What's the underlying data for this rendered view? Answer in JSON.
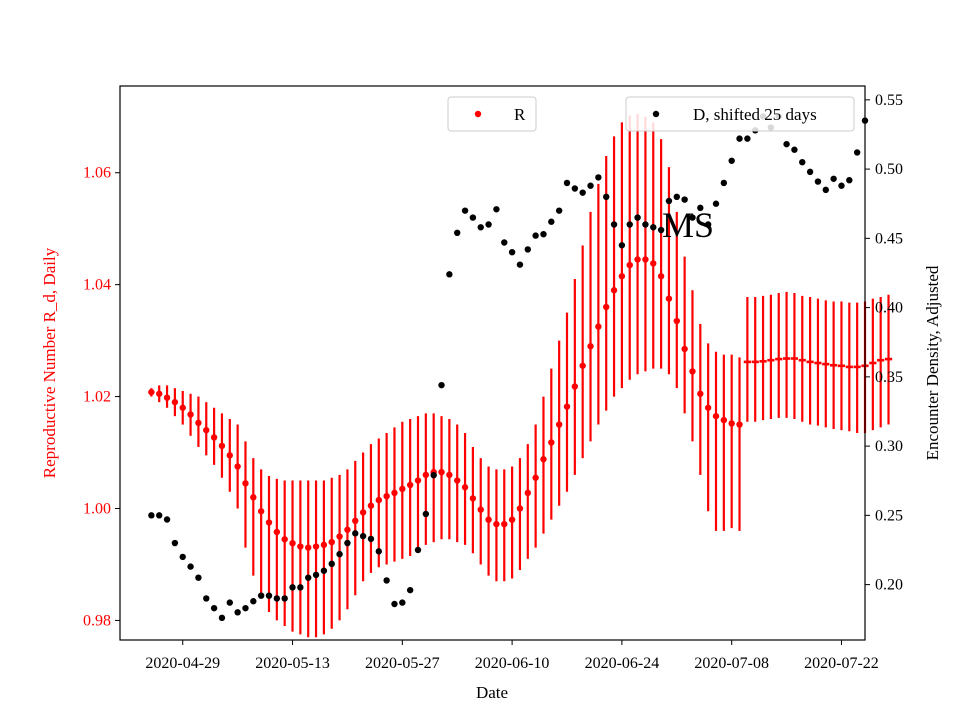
{
  "chart_data": {
    "type": "scatter",
    "xlabel": "Date",
    "ylabel_left": "Reproductive Number R_d, Daily",
    "ylabel_right": "Encounter Density, Adjusted",
    "annotation": "MS",
    "x_ticks": [
      "2020-04-29",
      "2020-05-13",
      "2020-05-27",
      "2020-06-10",
      "2020-06-24",
      "2020-07-08",
      "2020-07-22"
    ],
    "x_start": "2020-04-25",
    "x_range": [
      "2020-04-21",
      "2020-07-25"
    ],
    "ylim_left": [
      0.9765,
      1.0755
    ],
    "yticks_left": [
      0.98,
      1.0,
      1.02,
      1.04,
      1.06
    ],
    "ylim_right": [
      0.16,
      0.56
    ],
    "yticks_right": [
      0.2,
      0.25,
      0.3,
      0.35,
      0.4,
      0.45,
      0.5,
      0.55
    ],
    "left_color": "#ff0000",
    "right_color": "#000000",
    "series": [
      {
        "name": "R",
        "axis": "left",
        "color": "#ff0000",
        "marker": "point",
        "y": [
          1.0208,
          1.0205,
          1.0198,
          1.019,
          1.018,
          1.0168,
          1.0153,
          1.014,
          1.0127,
          1.0112,
          1.0095,
          1.0075,
          1.0045,
          1.002,
          0.9995,
          0.9975,
          0.9958,
          0.9945,
          0.9938,
          0.9932,
          0.993,
          0.9932,
          0.9935,
          0.994,
          0.995,
          0.9962,
          0.9978,
          0.9993,
          1.0005,
          1.0015,
          1.0022,
          1.0028,
          1.0035,
          1.0042,
          1.005,
          1.006,
          1.0065,
          1.0065,
          1.006,
          1.005,
          1.0038,
          1.0018,
          0.9998,
          0.998,
          0.9972,
          0.9972,
          0.998,
          1.0,
          1.0028,
          1.0055,
          1.0088,
          1.0118,
          1.015,
          1.0182,
          1.0218,
          1.0255,
          1.029,
          1.0325,
          1.036,
          1.039,
          1.0415,
          1.0435,
          1.0445,
          1.0445,
          1.0438,
          1.0415,
          1.0375,
          1.0335,
          1.0285,
          1.0245,
          1.0205,
          1.018,
          1.0165,
          1.0158,
          1.0152,
          1.015
        ],
        "yerr_low": [
          1.02,
          1.019,
          1.018,
          1.0165,
          1.015,
          1.013,
          1.011,
          1.0095,
          1.0078,
          1.0055,
          1.003,
          1.0,
          0.993,
          0.988,
          0.984,
          0.9815,
          0.98,
          0.979,
          0.978,
          0.9775,
          0.977,
          0.977,
          0.9775,
          0.9785,
          0.98,
          0.982,
          0.9845,
          0.987,
          0.9885,
          0.9895,
          0.99,
          0.9905,
          0.991,
          0.9915,
          0.9925,
          0.9935,
          0.994,
          0.9945,
          0.9945,
          0.994,
          0.9935,
          0.992,
          0.99,
          0.988,
          0.987,
          0.987,
          0.9875,
          0.989,
          0.991,
          0.993,
          0.9955,
          0.998,
          1.0005,
          1.003,
          1.006,
          1.009,
          1.012,
          1.015,
          1.0175,
          1.02,
          1.0215,
          1.023,
          1.024,
          1.0245,
          1.025,
          1.025,
          1.024,
          1.0215,
          1.017,
          1.012,
          1.006,
          0.9995,
          0.996,
          0.996,
          0.9965,
          0.996
        ],
        "yerr_high": [
          1.0215,
          1.022,
          1.022,
          1.0215,
          1.021,
          1.0205,
          1.02,
          1.019,
          1.018,
          1.017,
          1.016,
          1.015,
          1.012,
          1.009,
          1.007,
          1.0058,
          1.0053,
          1.005,
          1.005,
          1.005,
          1.005,
          1.005,
          1.005,
          1.0055,
          1.006,
          1.007,
          1.0085,
          1.01,
          1.0115,
          1.0125,
          1.0135,
          1.0145,
          1.0155,
          1.016,
          1.0165,
          1.017,
          1.017,
          1.0165,
          1.016,
          1.015,
          1.0135,
          1.011,
          1.009,
          1.0075,
          1.007,
          1.007,
          1.0075,
          1.009,
          1.0115,
          1.015,
          1.02,
          1.025,
          1.03,
          1.035,
          1.041,
          1.047,
          1.053,
          1.058,
          1.063,
          1.0665,
          1.069,
          1.0702,
          1.0705,
          1.07,
          1.069,
          1.066,
          1.061,
          1.053,
          1.045,
          1.039,
          1.033,
          1.0295,
          1.028,
          1.0275,
          1.0275,
          1.027
        ]
      },
      {
        "name": "R",
        "axis": "left",
        "color": "#ff0000",
        "marker": "hline",
        "x_offset": 76,
        "y": [
          1.0262,
          1.0262,
          1.0263,
          1.0265,
          1.0267,
          1.0268,
          1.0268,
          1.0265,
          1.0262,
          1.026,
          1.0258,
          1.0256,
          1.0255,
          1.0253,
          1.0253,
          1.0255,
          1.026,
          1.0265,
          1.0267
        ],
        "yerr_low": [
          1.0155,
          1.0155,
          1.0158,
          1.016,
          1.0162,
          1.0162,
          1.016,
          1.0155,
          1.015,
          1.0148,
          1.0145,
          1.0142,
          1.014,
          1.0138,
          1.0135,
          1.0135,
          1.014,
          1.0145,
          1.015
        ],
        "yerr_high": [
          1.0378,
          1.0378,
          1.038,
          1.0382,
          1.0385,
          1.0387,
          1.0385,
          1.038,
          1.0378,
          1.0375,
          1.0372,
          1.037,
          1.037,
          1.0368,
          1.0368,
          1.037,
          1.0375,
          1.0378,
          1.0382
        ]
      },
      {
        "name": "D, shifted 25 days",
        "axis": "right",
        "color": "#000000",
        "marker": "point",
        "y": [
          0.25,
          0.25,
          0.247,
          0.23,
          0.22,
          0.213,
          0.205,
          0.19,
          0.183,
          0.176,
          0.187,
          0.18,
          0.183,
          0.188,
          0.192,
          0.192,
          0.19,
          0.19,
          0.198,
          0.198,
          0.205,
          0.207,
          0.21,
          0.215,
          0.222,
          0.23,
          0.237,
          0.235,
          0.233,
          0.224,
          0.203,
          0.186,
          0.187,
          0.196,
          0.225,
          0.251,
          0.279,
          0.344,
          0.424,
          0.454,
          0.47,
          0.465,
          0.458,
          0.46,
          0.471,
          0.447,
          0.44,
          0.431,
          0.442,
          0.452,
          0.453,
          0.462,
          0.47,
          0.49,
          0.486,
          0.483,
          0.488,
          0.494,
          0.48,
          0.46,
          0.445,
          0.46,
          0.465,
          0.46,
          0.458,
          0.456,
          0.477,
          0.48,
          0.478,
          0.465,
          0.472,
          0.46,
          0.475,
          0.49,
          0.506,
          0.522,
          0.522,
          0.528,
          0.538,
          0.53,
          0.538,
          0.518,
          0.514,
          0.505,
          0.498,
          0.491,
          0.485,
          0.493,
          0.488,
          0.492,
          0.512,
          0.535
        ]
      }
    ],
    "legends": [
      {
        "label": "R",
        "marker": "point",
        "color": "#ff0000"
      },
      {
        "label": "D, shifted 25 days",
        "marker": "point",
        "color": "#000000"
      }
    ]
  }
}
